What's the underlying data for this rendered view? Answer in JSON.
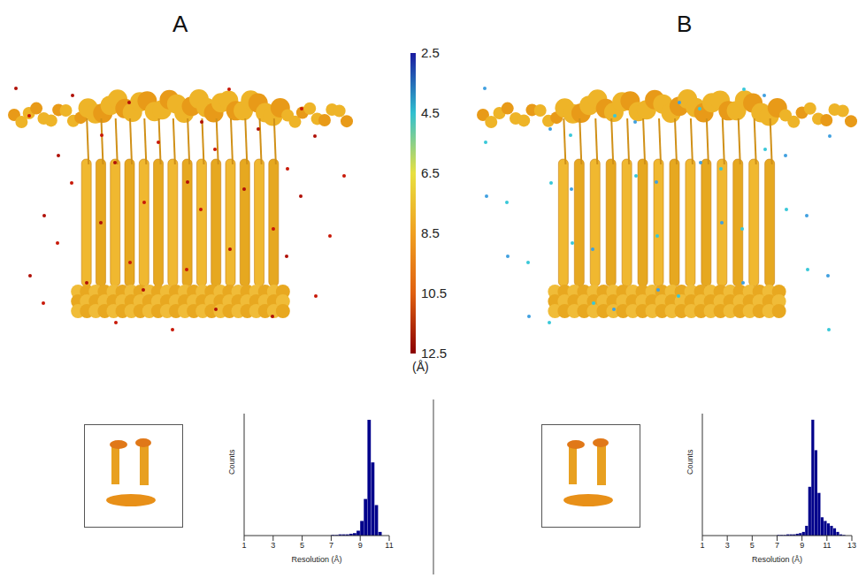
{
  "colorbar": {
    "range": [
      2.5,
      12.5
    ],
    "ticks": [
      2.5,
      4.5,
      6.5,
      8.5,
      10.5,
      12.5
    ],
    "unit": "(Å)",
    "colors": [
      "#1a1aa0",
      "#30c0d0",
      "#e8e040",
      "#f0a020",
      "#e06010",
      "#8b0000"
    ]
  },
  "chart_data": [
    {
      "panel": "A",
      "type": "histogram",
      "bins": [
        7,
        7.25,
        7.5,
        7.75,
        8,
        8.25,
        8.5,
        8.75,
        9,
        9.25,
        9.5,
        9.75,
        10,
        10.25,
        10.5
      ],
      "counts": [
        0.5,
        0.5,
        1,
        1,
        1,
        1.5,
        2,
        4,
        12,
        30,
        95,
        60,
        25,
        3
      ],
      "color": "#00008b",
      "xlim": [
        1,
        11
      ],
      "xticks": [
        1,
        3,
        5,
        7,
        9,
        11
      ],
      "ylim": [
        0,
        100
      ],
      "x_label": "Resolution (Å)",
      "y_label": "Counts",
      "tick_labels": "x"
    },
    {
      "panel": "B",
      "type": "histogram",
      "bins": [
        7,
        7.25,
        7.5,
        7.75,
        8,
        8.25,
        8.5,
        8.75,
        9,
        9.25,
        9.5,
        9.75,
        10,
        10.25,
        10.5,
        10.75,
        11,
        11.25,
        11.5,
        11.75,
        12,
        12.25,
        12.5
      ],
      "counts": [
        0.5,
        0.5,
        0.5,
        1,
        1,
        1,
        1.5,
        2,
        3,
        8,
        40,
        95,
        70,
        35,
        15,
        12,
        10,
        8,
        6,
        3,
        1,
        0.5
      ],
      "color": "#00008b",
      "xlim": [
        1,
        13
      ],
      "xticks": [
        1,
        3,
        5,
        7,
        9,
        11,
        13
      ],
      "ylim": [
        0,
        100
      ],
      "x_label": "Resolution (Å)",
      "y_label": "Counts",
      "tick_labels": "x"
    }
  ]
}
